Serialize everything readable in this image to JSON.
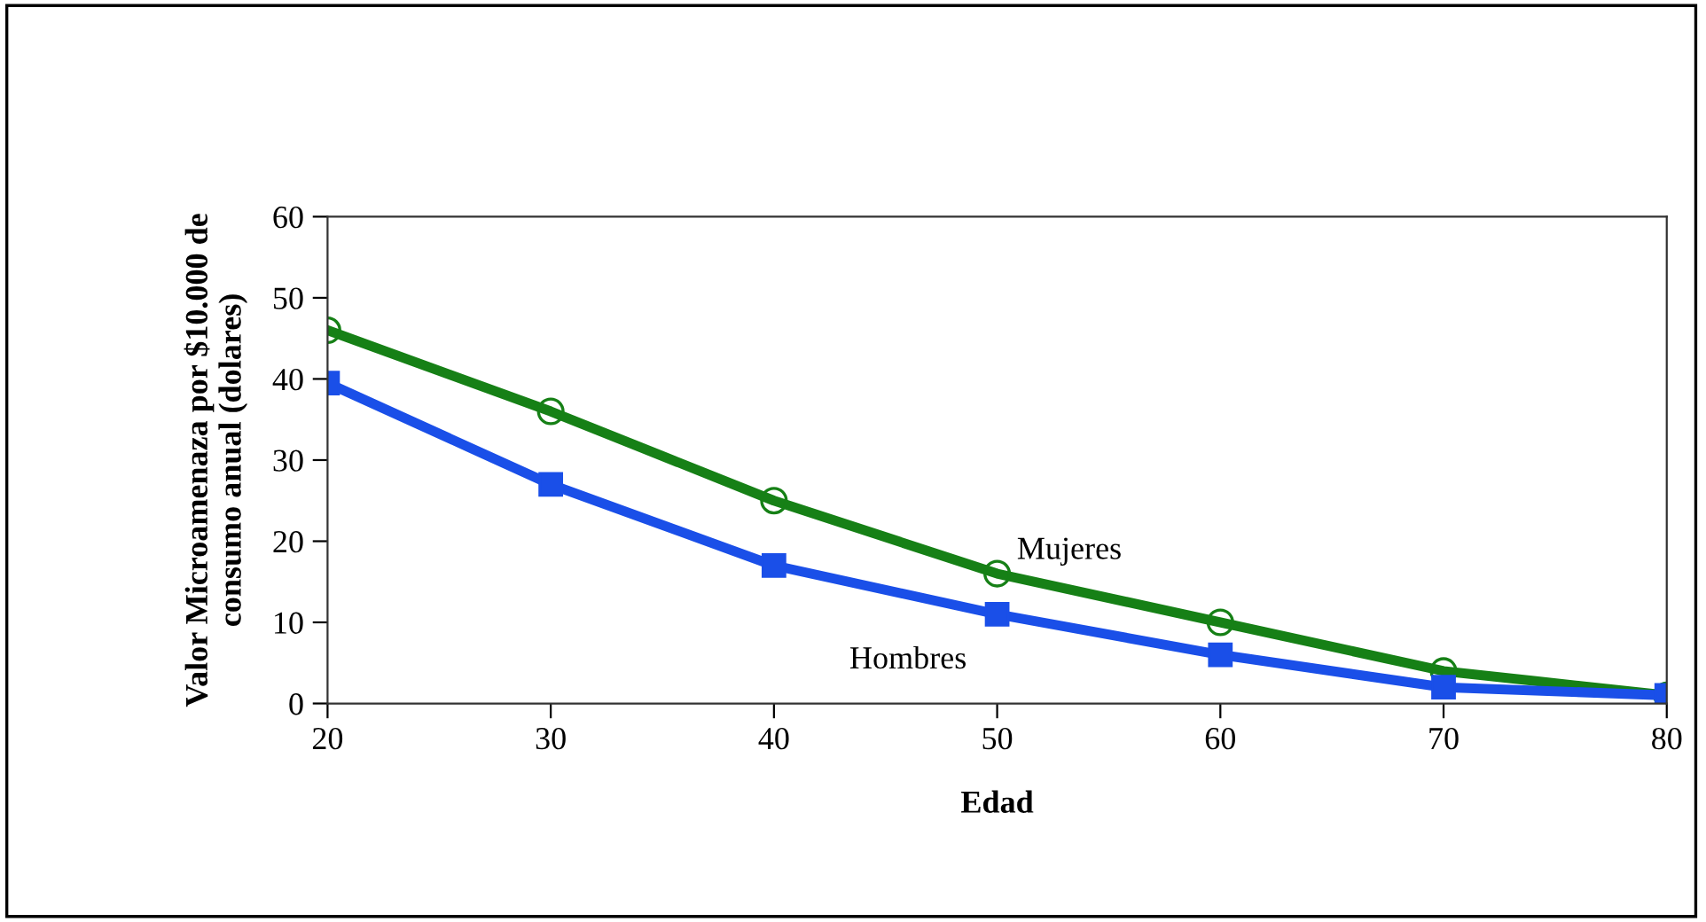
{
  "chart_data": {
    "type": "line",
    "xlabel": "Edad",
    "ylabel": "Valor Microamenaza por $10.000 de\nconsumo anual (dolares)",
    "x": [
      20,
      30,
      40,
      50,
      60,
      70,
      80
    ],
    "series": [
      {
        "name": "Mujeres",
        "color": "#168016",
        "marker": "circle",
        "values": [
          46,
          36,
          25,
          16,
          10,
          4,
          1
        ]
      },
      {
        "name": "Hombres",
        "color": "#1a4fe8",
        "marker": "square",
        "values": [
          39.5,
          27,
          17,
          11,
          6,
          2,
          1
        ]
      }
    ],
    "xlim": [
      20,
      80
    ],
    "xticks": [
      20,
      30,
      40,
      50,
      60,
      70,
      80
    ],
    "ylim": [
      0,
      60
    ],
    "yticks": [
      0,
      10,
      20,
      30,
      40,
      50,
      60
    ],
    "grid": false
  }
}
